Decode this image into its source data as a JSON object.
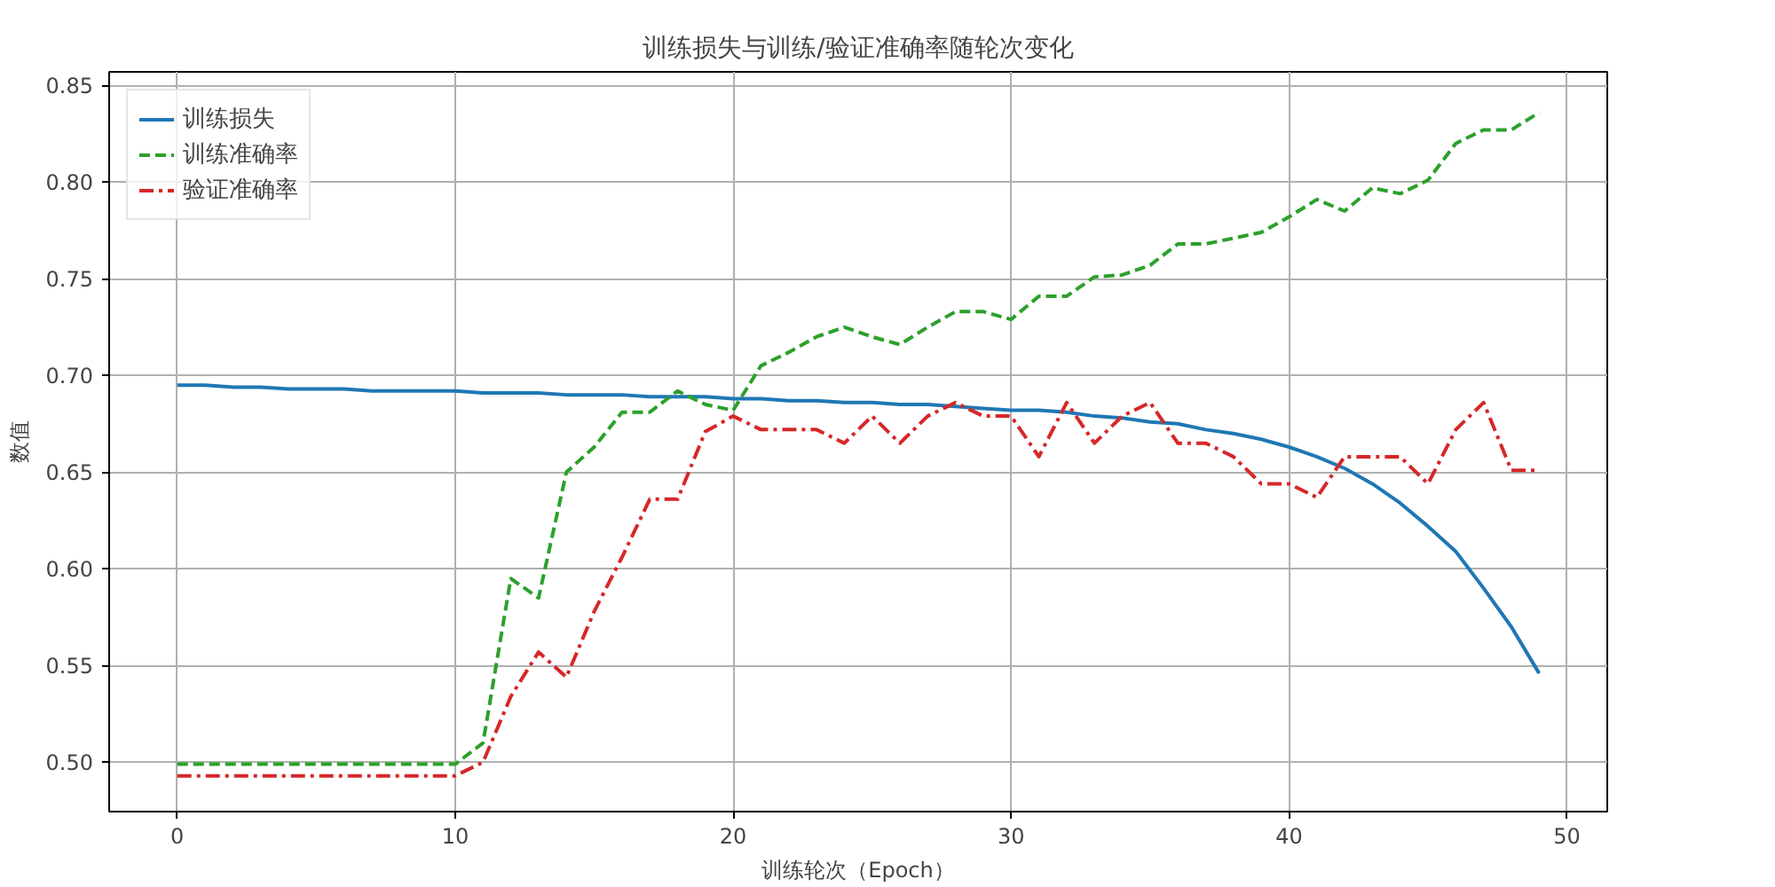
{
  "chart_data": {
    "type": "line",
    "title": "训练损失与训练/验证准确率随轮次变化",
    "xlabel": "训练轮次（Epoch）",
    "ylabel": "数值",
    "x": [
      0,
      1,
      2,
      3,
      4,
      5,
      6,
      7,
      8,
      9,
      10,
      11,
      12,
      13,
      14,
      15,
      16,
      17,
      18,
      19,
      20,
      21,
      22,
      23,
      24,
      25,
      26,
      27,
      28,
      29,
      30,
      31,
      32,
      33,
      34,
      35,
      36,
      37,
      38,
      39,
      40,
      41,
      42,
      43,
      44,
      45,
      46,
      47,
      48,
      49
    ],
    "series": [
      {
        "name": "训练损失",
        "color": "#1f77b4",
        "line_style": "solid",
        "values": [
          0.695,
          0.695,
          0.694,
          0.694,
          0.693,
          0.693,
          0.693,
          0.692,
          0.692,
          0.692,
          0.692,
          0.691,
          0.691,
          0.691,
          0.69,
          0.69,
          0.69,
          0.689,
          0.689,
          0.689,
          0.688,
          0.688,
          0.687,
          0.687,
          0.686,
          0.686,
          0.685,
          0.685,
          0.684,
          0.683,
          0.682,
          0.682,
          0.681,
          0.679,
          0.678,
          0.676,
          0.675,
          0.672,
          0.67,
          0.667,
          0.663,
          0.658,
          0.652,
          0.644,
          0.634,
          0.622,
          0.609,
          0.59,
          0.57,
          0.546
        ]
      },
      {
        "name": "训练准确率",
        "color": "#2ca02c",
        "line_style": "dashed",
        "values": [
          0.499,
          0.499,
          0.499,
          0.499,
          0.499,
          0.499,
          0.499,
          0.499,
          0.499,
          0.499,
          0.499,
          0.51,
          0.595,
          0.585,
          0.65,
          0.663,
          0.681,
          0.681,
          0.692,
          0.685,
          0.682,
          0.705,
          0.712,
          0.72,
          0.725,
          0.72,
          0.716,
          0.725,
          0.733,
          0.733,
          0.729,
          0.741,
          0.741,
          0.751,
          0.752,
          0.757,
          0.768,
          0.768,
          0.771,
          0.774,
          0.782,
          0.791,
          0.785,
          0.797,
          0.794,
          0.801,
          0.82,
          0.827,
          0.827,
          0.836
        ]
      },
      {
        "name": "验证准确率",
        "color": "#d62728",
        "line_style": "dashdot",
        "values": [
          0.493,
          0.493,
          0.493,
          0.493,
          0.493,
          0.493,
          0.493,
          0.493,
          0.493,
          0.493,
          0.493,
          0.5,
          0.534,
          0.557,
          0.544,
          0.578,
          0.606,
          0.636,
          0.636,
          0.671,
          0.679,
          0.672,
          0.672,
          0.672,
          0.665,
          0.679,
          0.665,
          0.679,
          0.686,
          0.679,
          0.679,
          0.658,
          0.686,
          0.665,
          0.679,
          0.686,
          0.665,
          0.665,
          0.658,
          0.644,
          0.644,
          0.637,
          0.658,
          0.658,
          0.658,
          0.644,
          0.672,
          0.686,
          0.651,
          0.651
        ]
      }
    ],
    "xlim": [
      -2.45,
      51.45
    ],
    "ylim": [
      0.4745,
      0.857
    ],
    "xticks": [
      0,
      10,
      20,
      30,
      40,
      50
    ],
    "yticks": [
      {
        "value": 0.5,
        "label": "0.50"
      },
      {
        "value": 0.55,
        "label": "0.55"
      },
      {
        "value": 0.6,
        "label": "0.60"
      },
      {
        "value": 0.65,
        "label": "0.65"
      },
      {
        "value": 0.7,
        "label": "0.70"
      },
      {
        "value": 0.75,
        "label": "0.75"
      },
      {
        "value": 0.8,
        "label": "0.80"
      },
      {
        "value": 0.85,
        "label": "0.85"
      }
    ],
    "grid": true,
    "legend": "top left"
  }
}
